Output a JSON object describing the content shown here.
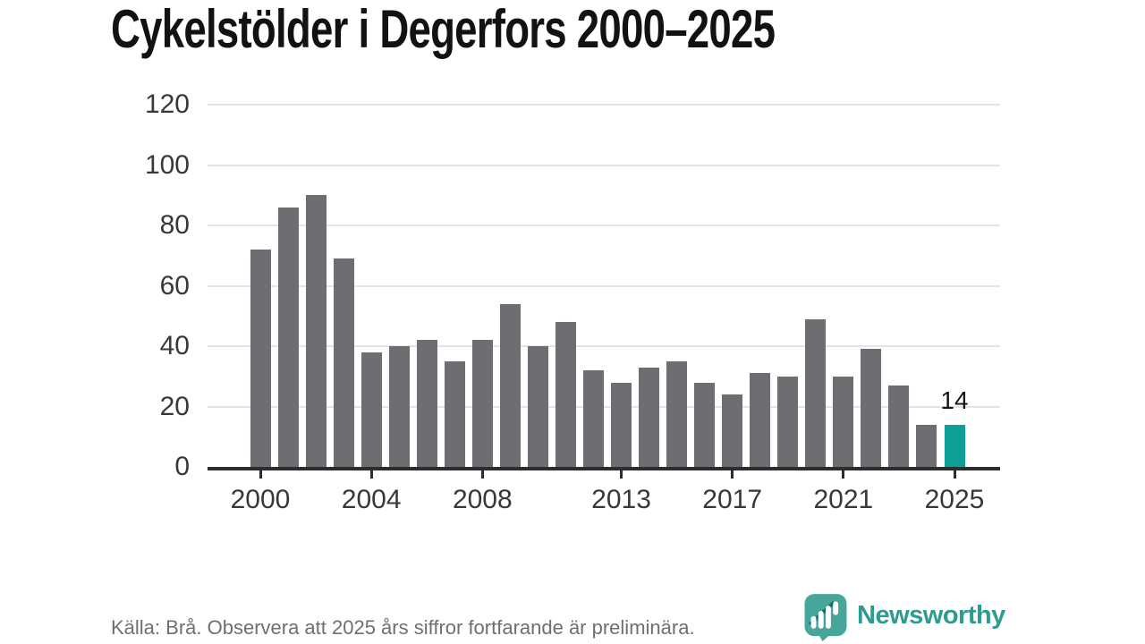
{
  "title": "Cykelstölder i Degerfors 2000–2025",
  "footer": {
    "source_text": "Källa: Brå. Observera att 2025 års siffror fortfarande är preliminära.",
    "brand_name": "Newsworthy"
  },
  "colors": {
    "bar": "#6d6d72",
    "highlight": "#0d9e96",
    "axis": "#2d2d2d",
    "gridline": "#e4e4e4",
    "tick_label": "#383838",
    "annotation": "#141414",
    "footer_text": "#6f6f73",
    "brand_teal": "#2d9c90",
    "logo_bubble": "#47a69b"
  },
  "chart_data": {
    "type": "bar",
    "title": "Cykelstölder i Degerfors 2000–2025",
    "x": [
      2000,
      2001,
      2002,
      2003,
      2004,
      2005,
      2006,
      2007,
      2008,
      2009,
      2010,
      2011,
      2012,
      2013,
      2014,
      2015,
      2016,
      2017,
      2018,
      2019,
      2020,
      2021,
      2022,
      2023,
      2024,
      2025
    ],
    "values": [
      72,
      86,
      90,
      69,
      38,
      40,
      42,
      35,
      42,
      54,
      40,
      48,
      32,
      28,
      33,
      35,
      28,
      24,
      31,
      30,
      49,
      30,
      39,
      27,
      14,
      14
    ],
    "highlight_index": 25,
    "bar_label": {
      "index": 25,
      "text": "14"
    },
    "xticks": [
      2000,
      2004,
      2008,
      2013,
      2017,
      2021,
      2025
    ],
    "yticks": [
      0,
      20,
      40,
      60,
      80,
      100,
      120
    ],
    "ylim": [
      0,
      120
    ],
    "grid": true,
    "legend": false
  }
}
